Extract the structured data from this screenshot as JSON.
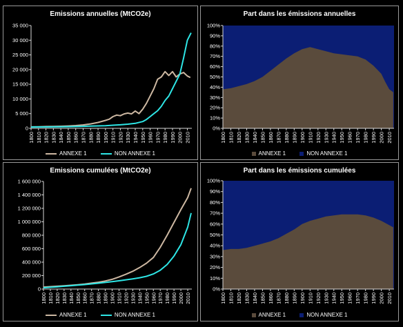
{
  "chart_data": [
    {
      "id": "emissions-annuelles",
      "type": "line",
      "title": "Emissions annuelles (MtCO2e)",
      "xlabel": "",
      "ylabel": "",
      "x_ticks": [
        "1800",
        "1810",
        "1820",
        "1830",
        "1840",
        "1850",
        "1860",
        "1870",
        "1880",
        "1890",
        "1900",
        "1910",
        "1920",
        "1930",
        "1940",
        "1950",
        "1960",
        "1970",
        "1980",
        "1990",
        "2000",
        "2010"
      ],
      "y_ticks": [
        "0",
        "5 000",
        "10 000",
        "15 000",
        "20 000",
        "25 000",
        "30 000",
        "35 000"
      ],
      "ylim": [
        0,
        35000
      ],
      "xlim": [
        1800,
        2016
      ],
      "grid": false,
      "legend": "bottom",
      "series": [
        {
          "name": "ANNEXE 1",
          "color": "#cdb8a2",
          "x": [
            1800,
            1810,
            1820,
            1830,
            1840,
            1850,
            1860,
            1870,
            1880,
            1890,
            1900,
            1905,
            1910,
            1915,
            1920,
            1925,
            1930,
            1935,
            1940,
            1945,
            1950,
            1955,
            1960,
            1965,
            1970,
            1975,
            1980,
            1985,
            1990,
            1995,
            2000,
            2005,
            2010,
            2014
          ],
          "y": [
            500,
            550,
            600,
            650,
            700,
            800,
            950,
            1150,
            1500,
            2000,
            2700,
            3100,
            4000,
            4500,
            4300,
            4900,
            5200,
            4900,
            5900,
            5000,
            6500,
            8500,
            11000,
            13500,
            16700,
            17500,
            19300,
            18000,
            19300,
            17500,
            18500,
            19000,
            17800,
            17300
          ]
        },
        {
          "name": "NON ANNEXE 1",
          "color": "#2ee6e6",
          "x": [
            1800,
            1810,
            1820,
            1830,
            1840,
            1850,
            1860,
            1870,
            1880,
            1890,
            1900,
            1910,
            1920,
            1930,
            1940,
            1950,
            1955,
            1960,
            1965,
            1970,
            1975,
            1980,
            1985,
            1990,
            1995,
            2000,
            2005,
            2010,
            2015
          ],
          "y": [
            450,
            460,
            480,
            500,
            530,
            570,
            620,
            680,
            750,
            820,
            900,
            1050,
            1200,
            1400,
            1700,
            2300,
            3000,
            4000,
            5000,
            6000,
            7500,
            9500,
            11000,
            13500,
            16000,
            18500,
            24000,
            30000,
            32500
          ]
        }
      ]
    },
    {
      "id": "part-annuelles",
      "type": "area",
      "title": "Part dans les émissions annuelles",
      "xlabel": "",
      "ylabel": "",
      "x_ticks": [
        "1800",
        "1810",
        "1820",
        "1830",
        "1840",
        "1850",
        "1860",
        "1870",
        "1880",
        "1890",
        "1900",
        "1910",
        "1920",
        "1930",
        "1940",
        "1950",
        "1960",
        "1970",
        "1980",
        "1990",
        "2000",
        "2010"
      ],
      "y_ticks": [
        "0%",
        "10%",
        "20%",
        "30%",
        "40%",
        "50%",
        "60%",
        "70%",
        "80%",
        "90%",
        "100%"
      ],
      "ylim": [
        0,
        100
      ],
      "xlim": [
        1800,
        2016
      ],
      "legend": "bottom",
      "series": [
        {
          "name": "ANNEXE 1",
          "color": "#5a4b3c",
          "x": [
            1800,
            1810,
            1820,
            1830,
            1840,
            1850,
            1860,
            1870,
            1880,
            1890,
            1900,
            1910,
            1920,
            1930,
            1940,
            1950,
            1960,
            1970,
            1980,
            1990,
            2000,
            2005,
            2010,
            2015
          ],
          "y": [
            38,
            39,
            41,
            43,
            46,
            50,
            56,
            62,
            68,
            73,
            77,
            79,
            77,
            75,
            73,
            72,
            71,
            70,
            67,
            61,
            53,
            45,
            38,
            35
          ]
        },
        {
          "name": "NON ANNEXE 1",
          "color": "#0b1e74",
          "fills_remainder_to": 100
        }
      ]
    },
    {
      "id": "emissions-cumulees",
      "type": "line",
      "title": "Emissions cumulées (MtCO2e)",
      "xlabel": "",
      "ylabel": "",
      "x_ticks": [
        "1800",
        "1810",
        "1820",
        "1830",
        "1840",
        "1850",
        "1860",
        "1870",
        "1880",
        "1890",
        "1900",
        "1910",
        "1920",
        "1930",
        "1940",
        "1950",
        "1960",
        "1970",
        "1980",
        "1990",
        "2000",
        "2010"
      ],
      "y_ticks": [
        "0",
        "200 000",
        "400 000",
        "600 000",
        "800 000",
        "1 000 000",
        "1 200 000",
        "1 400 000",
        "1 600 000"
      ],
      "ylim": [
        0,
        1600000
      ],
      "xlim": [
        1800,
        2016
      ],
      "legend": "bottom",
      "series": [
        {
          "name": "ANNEXE 1",
          "color": "#cdb8a2",
          "x": [
            1800,
            1810,
            1820,
            1830,
            1840,
            1850,
            1860,
            1870,
            1880,
            1890,
            1900,
            1910,
            1920,
            1930,
            1940,
            1950,
            1960,
            1970,
            1980,
            1990,
            2000,
            2010,
            2015
          ],
          "y": [
            30000,
            36000,
            42000,
            48000,
            56000,
            65000,
            75000,
            88000,
            102000,
            120000,
            145000,
            180000,
            220000,
            265000,
            320000,
            385000,
            470000,
            620000,
            800000,
            990000,
            1180000,
            1360000,
            1500000
          ]
        },
        {
          "name": "NON ANNEXE 1",
          "color": "#2ee6e6",
          "x": [
            1800,
            1810,
            1820,
            1830,
            1840,
            1850,
            1860,
            1870,
            1880,
            1890,
            1900,
            1910,
            1920,
            1930,
            1940,
            1950,
            1960,
            1970,
            1980,
            1990,
            2000,
            2010,
            2015
          ],
          "y": [
            20000,
            27000,
            34000,
            42000,
            50000,
            58000,
            67000,
            77000,
            87000,
            98000,
            110000,
            123000,
            137000,
            152000,
            168000,
            190000,
            225000,
            280000,
            365000,
            490000,
            660000,
            920000,
            1130000
          ]
        }
      ]
    },
    {
      "id": "part-cumulees",
      "type": "area",
      "title": "Part dans les émissions cumulées",
      "xlabel": "",
      "ylabel": "",
      "x_ticks": [
        "1800",
        "1810",
        "1820",
        "1830",
        "1840",
        "1850",
        "1860",
        "1870",
        "1880",
        "1890",
        "1900",
        "1910",
        "1920",
        "1930",
        "1940",
        "1950",
        "1960",
        "1970",
        "1980",
        "1990",
        "2000",
        "2010"
      ],
      "y_ticks": [
        "0%",
        "10%",
        "20%",
        "30%",
        "40%",
        "50%",
        "60%",
        "70%",
        "80%",
        "90%",
        "100%"
      ],
      "ylim": [
        0,
        100
      ],
      "xlim": [
        1800,
        2016
      ],
      "legend": "bottom",
      "series": [
        {
          "name": "ANNEXE 1",
          "color": "#5a4b3c",
          "x": [
            1800,
            1810,
            1820,
            1830,
            1840,
            1850,
            1860,
            1870,
            1880,
            1890,
            1900,
            1910,
            1920,
            1930,
            1940,
            1950,
            1960,
            1970,
            1980,
            1990,
            2000,
            2010,
            2015
          ],
          "y": [
            36,
            37,
            37,
            38,
            40,
            42,
            44,
            47,
            51,
            55,
            60,
            63,
            65,
            67,
            68,
            69,
            69,
            69,
            68,
            66,
            63,
            59,
            57
          ]
        },
        {
          "name": "NON ANNEXE 1",
          "color": "#0b1e74",
          "fills_remainder_to": 100
        }
      ]
    }
  ]
}
